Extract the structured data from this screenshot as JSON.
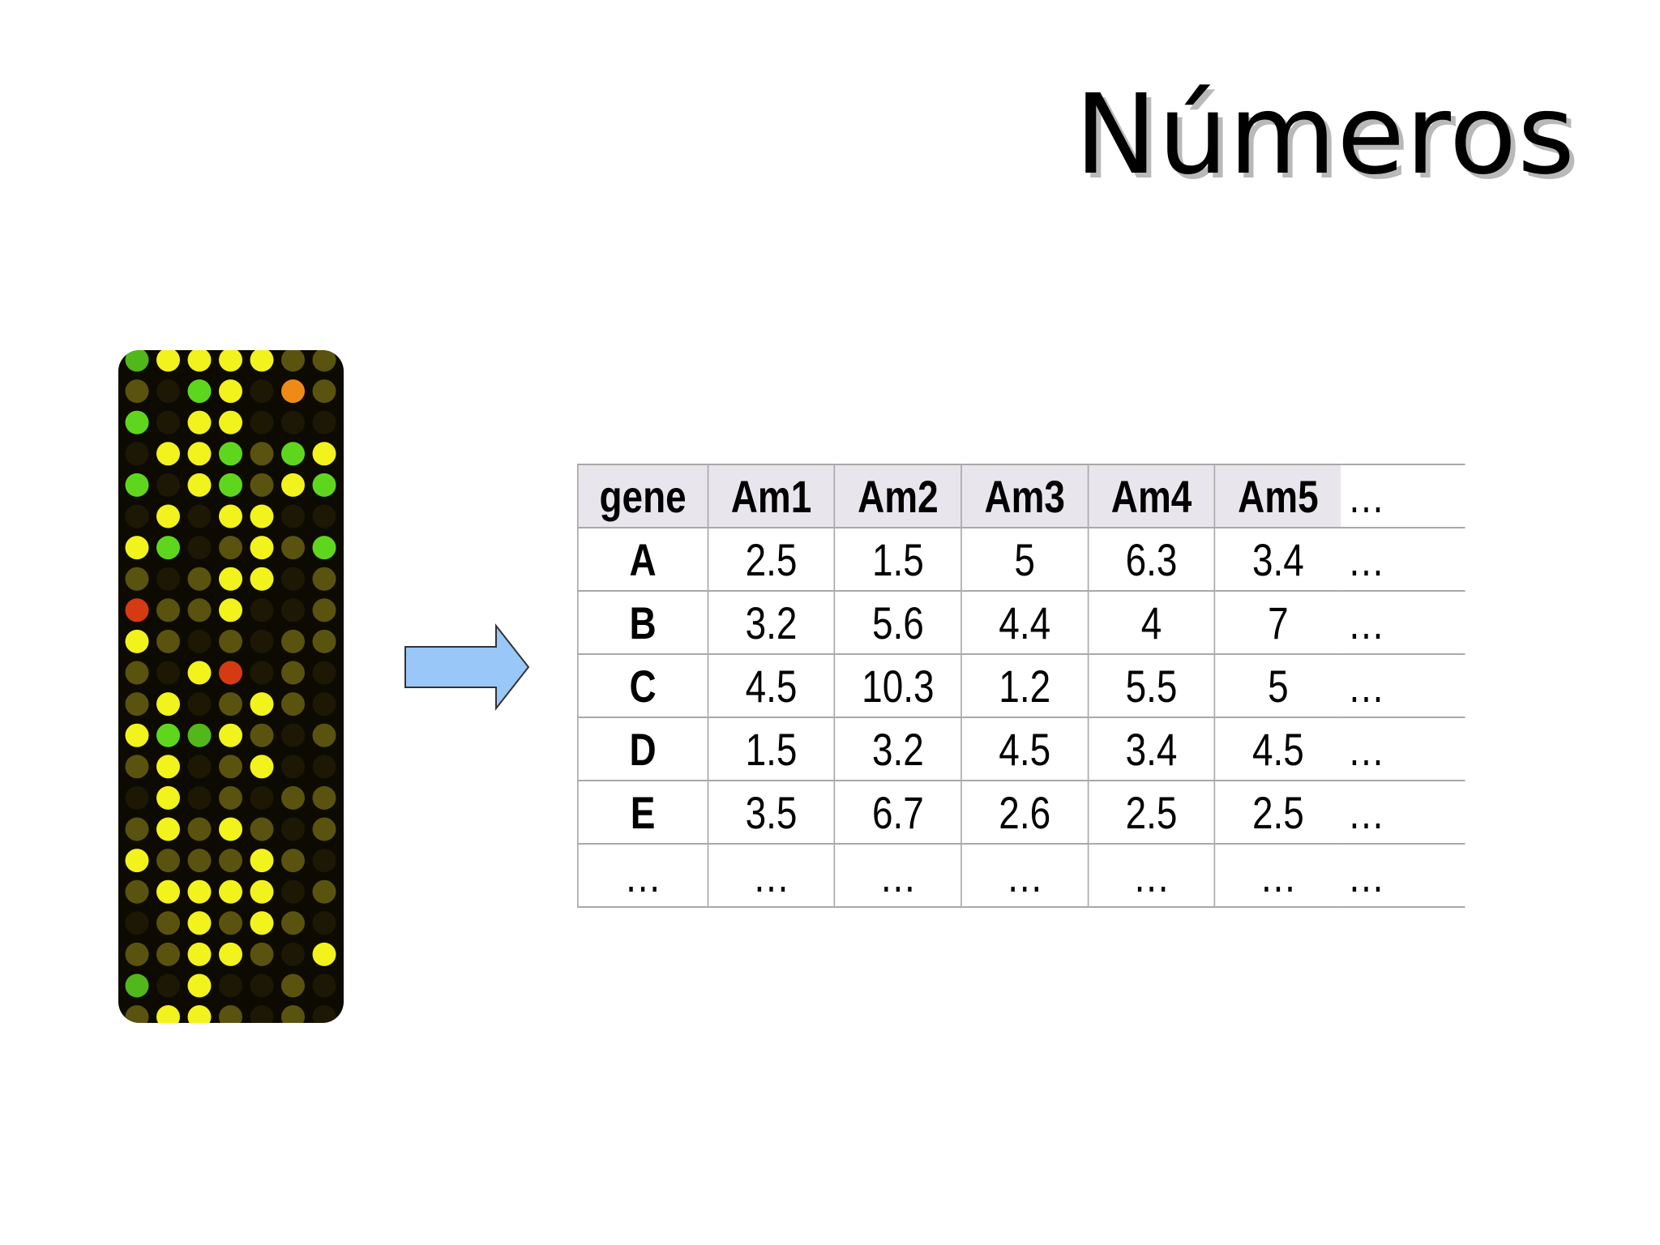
{
  "slide": {
    "title": "Números"
  },
  "colors": {
    "header_bg": "#e8e6ec",
    "grid_line": "#a8a8a8",
    "arrow_fill": "#99c8f8",
    "arrow_stroke": "#333333",
    "array_bg": "#0d0a02",
    "spot_yellow": "#f2f21c",
    "spot_green": "#5fd61e",
    "spot_red": "#d63a12",
    "spot_orange": "#f08a16",
    "spot_olive": "#7a7216"
  },
  "table": {
    "headers": [
      "gene",
      "Am1",
      "Am2",
      "Am3",
      "Am4",
      "Am5",
      "…"
    ],
    "rows": [
      [
        "A",
        "2.5",
        "1.5",
        "5",
        "6.3",
        "3.4",
        "…"
      ],
      [
        "B",
        "3.2",
        "5.6",
        "4.4",
        "4",
        "7",
        "…"
      ],
      [
        "C",
        "4.5",
        "10.3",
        "1.2",
        "5.5",
        "5",
        "…"
      ],
      [
        "D",
        "1.5",
        "3.2",
        "4.5",
        "3.4",
        "4.5",
        "…"
      ],
      [
        "E",
        "3.5",
        "6.7",
        "2.6",
        "2.5",
        "2.5",
        "…"
      ],
      [
        "…",
        "…",
        "…",
        "…",
        "…",
        "…",
        "…"
      ]
    ]
  },
  "microarray": {
    "spot_pattern": [
      "Gyyyyoo",
      "oKgyKro",
      "gKyyKKK",
      "Kyygogy",
      "gKygoyg",
      "KyKyyKK",
      "ygKoyog",
      "oKoyyKo",
      "rooyKKo",
      "yoKoKoo",
      "oKyrKoK",
      "oyKoyoK",
      "ygGyoKo",
      "oyKoyKK",
      "KyKoKoo",
      "oyoyoKo",
      "yoooyoK",
      "oyyyyKo",
      "KoyoyoK",
      "ooyyoKy",
      "GKyKKoK",
      "oyyoKoK"
    ]
  }
}
